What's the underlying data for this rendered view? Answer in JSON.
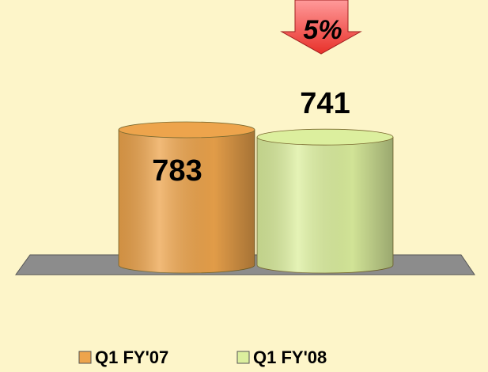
{
  "chart_data": {
    "type": "cylinder",
    "categories": [
      "Q1 FY'07",
      "Q1 FY'08"
    ],
    "values": [
      783,
      741
    ],
    "colors": [
      "#eda44c",
      "#dcef9e"
    ],
    "annotation": "5%"
  }
}
